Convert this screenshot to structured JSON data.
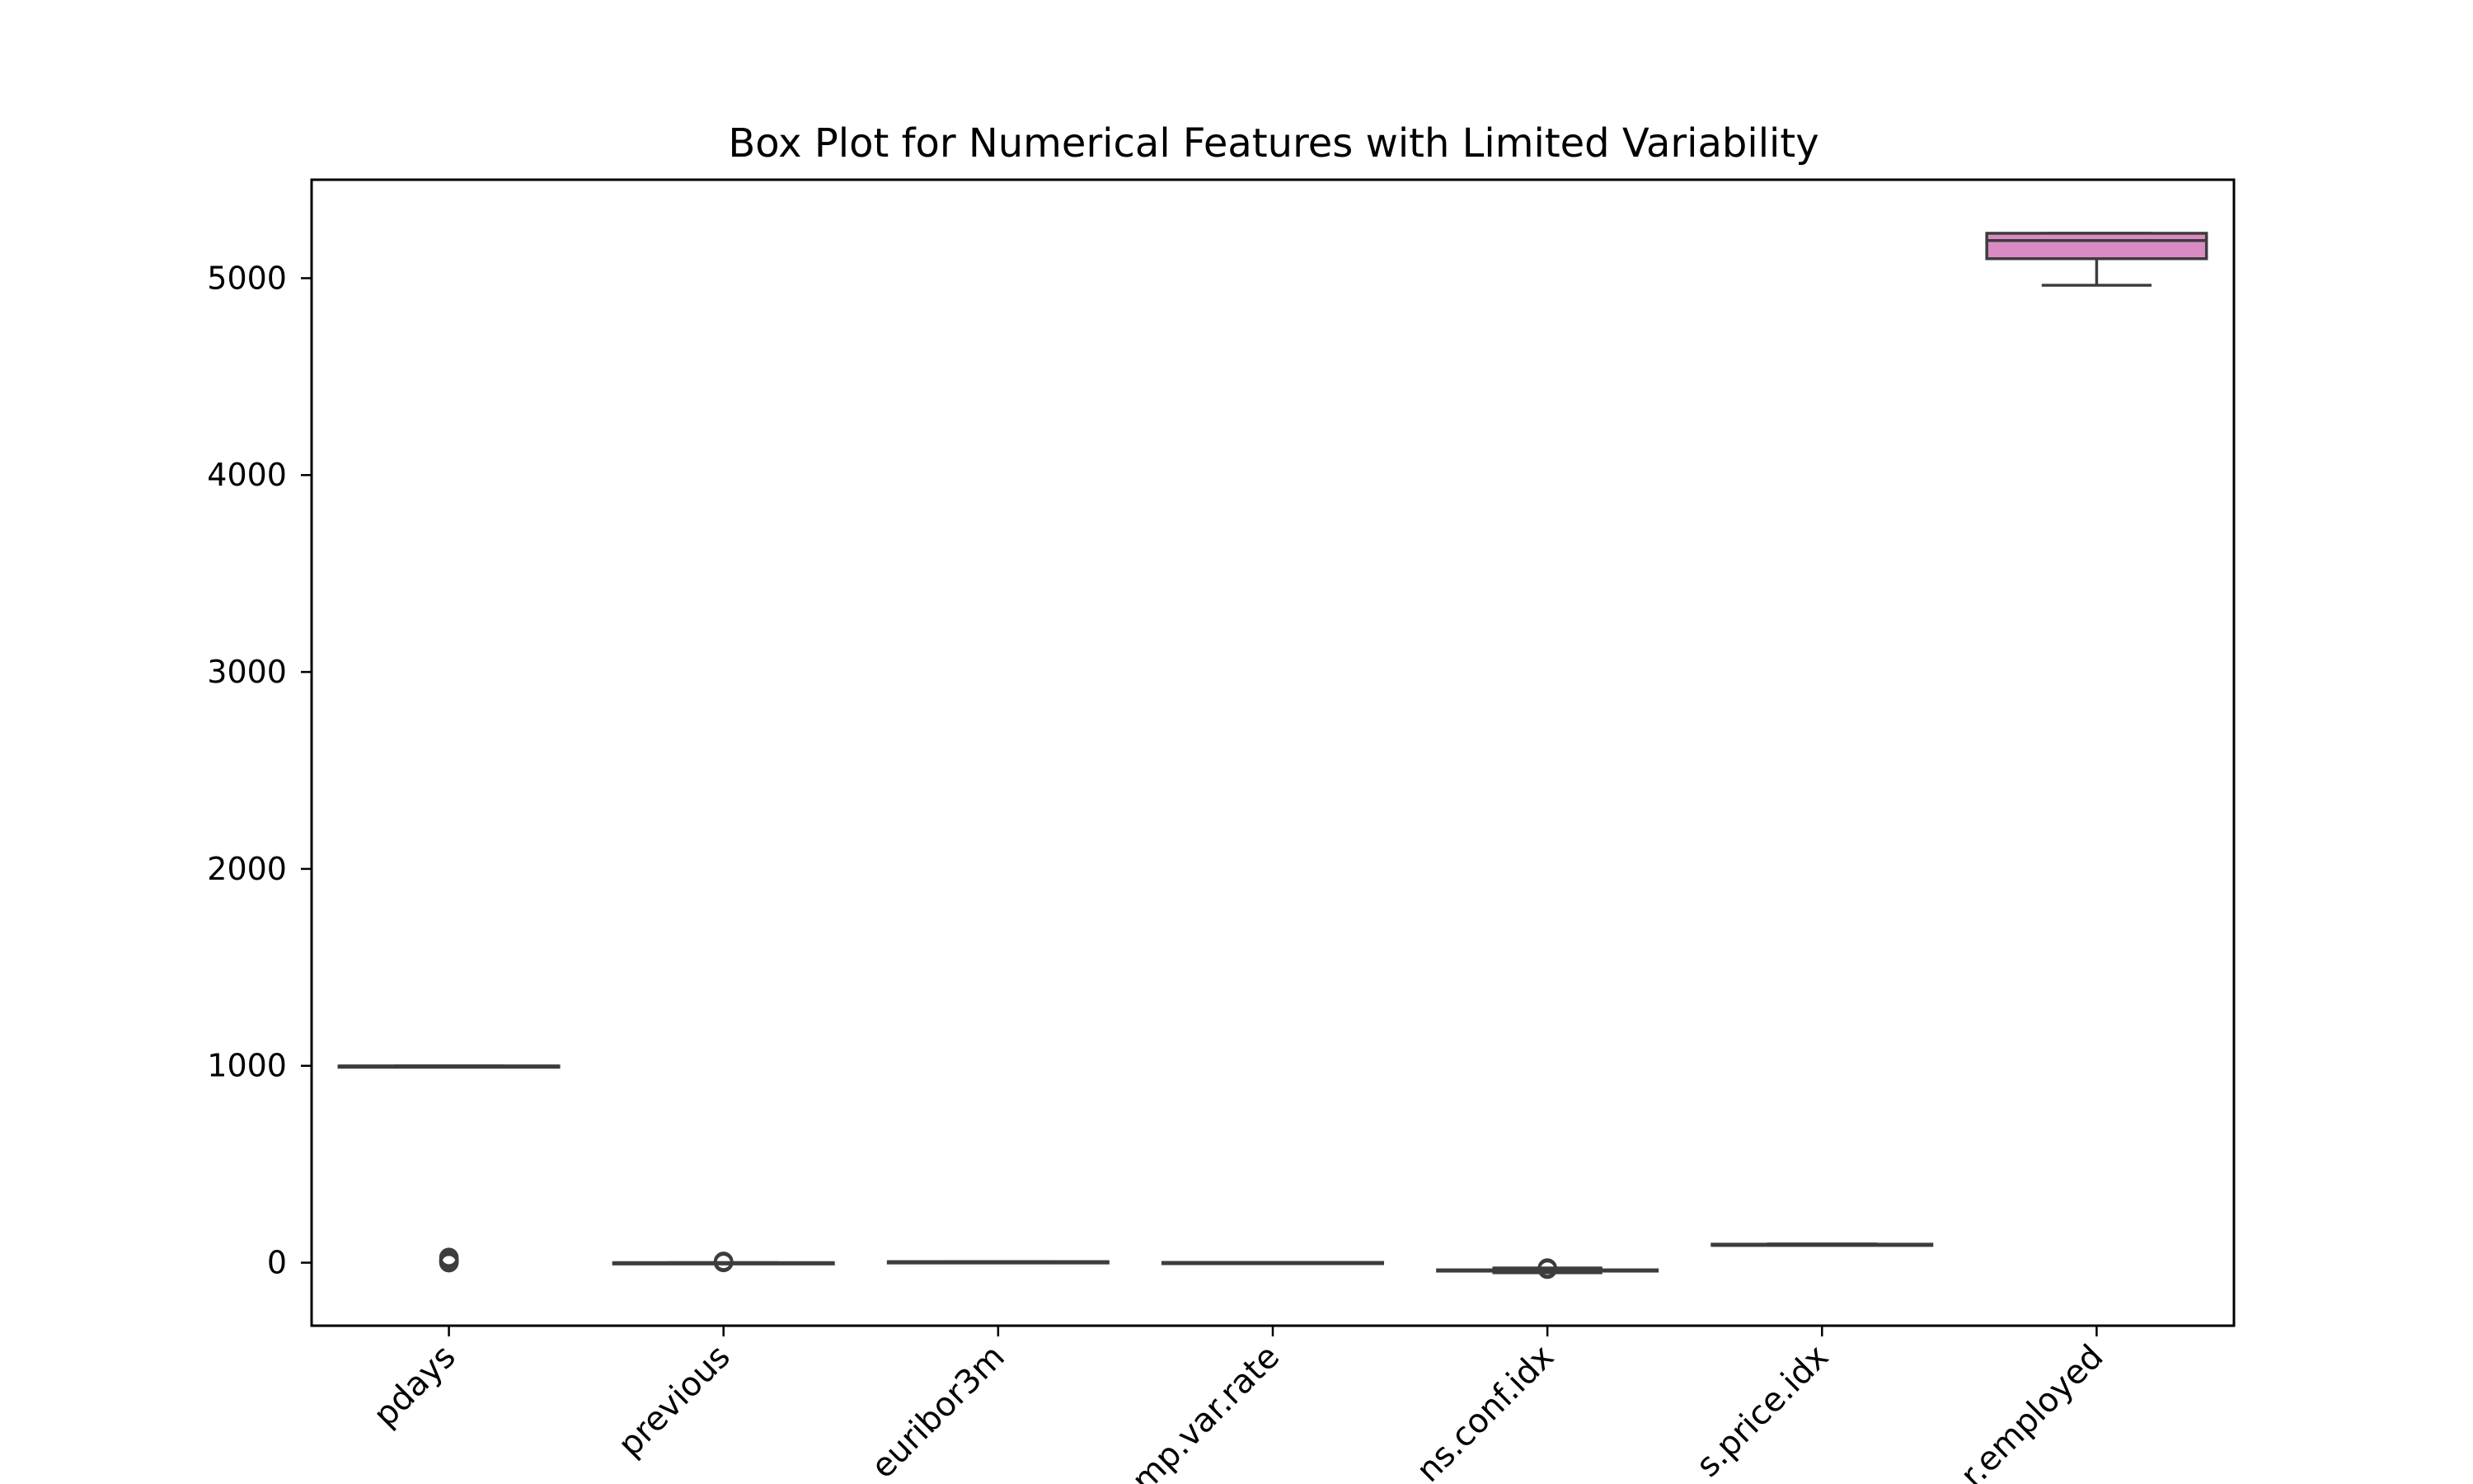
{
  "chart_data": {
    "type": "box",
    "title": "Box Plot for Numerical Features with Limited Variability",
    "xlabel": "",
    "ylabel": "",
    "ylim": [
      -320,
      5500
    ],
    "yticks": [
      0,
      1000,
      2000,
      3000,
      4000,
      5000
    ],
    "ytick_labels": [
      "0",
      "1000",
      "2000",
      "3000",
      "4000",
      "5000"
    ],
    "categories": [
      "pdays",
      "previous",
      "euribor3m",
      "emp.var.rate",
      "cons.conf.idx",
      "cons.price.idx",
      "nr.employed"
    ],
    "xtick_labels": [
      "pdays",
      "previous",
      "euribor3m",
      "mp.var.rate",
      "ns.conf.idx",
      "s.price.idx",
      "r.employed"
    ],
    "grid": false,
    "series": [
      {
        "category": "pdays",
        "whisker_low": 999,
        "q1": 999,
        "median": 999,
        "q3": 999,
        "whisker_high": 999,
        "outliers": [
          0,
          3,
          6,
          12,
          18,
          27
        ],
        "color": "#4c72b0"
      },
      {
        "category": "previous",
        "whisker_low": 0,
        "q1": 0,
        "median": 0,
        "q3": 0,
        "whisker_high": 0,
        "outliers": [
          1,
          2,
          4,
          7
        ],
        "color": "#dd8452"
      },
      {
        "category": "euribor3m",
        "whisker_low": 0.6,
        "q1": 1.3,
        "median": 4.9,
        "q3": 5.0,
        "whisker_high": 5.0,
        "outliers": [],
        "color": "#55a868"
      },
      {
        "category": "emp.var.rate",
        "whisker_low": -3.4,
        "q1": -1.8,
        "median": 1.1,
        "q3": 1.4,
        "whisker_high": 1.4,
        "outliers": [],
        "color": "#c44e52"
      },
      {
        "category": "cons.conf.idx",
        "whisker_low": -50.8,
        "q1": -42.7,
        "median": -41.8,
        "q3": -36.4,
        "whisker_high": -26.9,
        "outliers": [
          -26.9,
          -33
        ],
        "color": "#8172b3"
      },
      {
        "category": "cons.price.idx",
        "whisker_low": 92.2,
        "q1": 93.1,
        "median": 93.7,
        "q3": 94.0,
        "whisker_high": 94.8,
        "outliers": [],
        "color": "#937860"
      },
      {
        "category": "nr.employed",
        "whisker_low": 4964,
        "q1": 5099,
        "median": 5191,
        "q3": 5228,
        "whisker_high": 5228,
        "outliers": [],
        "color": "#da8bc3"
      }
    ]
  }
}
